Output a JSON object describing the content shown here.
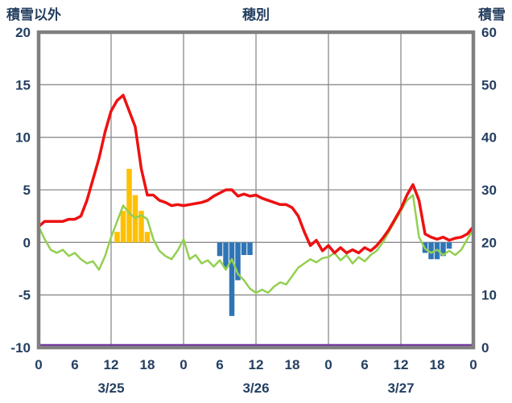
{
  "header": {
    "left_axis_title": "積雪以外",
    "chart_title": "穂別",
    "right_axis_title": "積雪"
  },
  "colors": {
    "red_line": "#ee1111",
    "green_line": "#92d050",
    "orange_bar": "#ffc000",
    "blue_bar": "#2e75b6",
    "purple_line": "#7030a0",
    "grid": "#8c8c8c",
    "border": "#7f7f7f",
    "text": "#243f60",
    "background": "#ffffff"
  },
  "chart_data": {
    "type": "line+bar",
    "title": "穂別",
    "x_unit": "hour",
    "x_range_hours": [
      0,
      72
    ],
    "left_axis": {
      "label": "積雪以外",
      "min": -10,
      "max": 20,
      "ticks": [
        20,
        15,
        10,
        5,
        0,
        -5,
        -10
      ]
    },
    "right_axis": {
      "label": "積雪",
      "min": 0,
      "max": 60,
      "ticks": [
        60,
        50,
        40,
        30,
        20,
        10,
        0
      ]
    },
    "x_ticks": [
      {
        "hour": 0,
        "label": "0"
      },
      {
        "hour": 6,
        "label": "6"
      },
      {
        "hour": 12,
        "label": "12"
      },
      {
        "hour": 18,
        "label": "18"
      },
      {
        "hour": 24,
        "label": "0"
      },
      {
        "hour": 30,
        "label": "6"
      },
      {
        "hour": 36,
        "label": "12"
      },
      {
        "hour": 42,
        "label": "18"
      },
      {
        "hour": 48,
        "label": "0"
      },
      {
        "hour": 54,
        "label": "6"
      },
      {
        "hour": 60,
        "label": "12"
      },
      {
        "hour": 66,
        "label": "18"
      },
      {
        "hour": 72,
        "label": "0"
      }
    ],
    "date_labels": [
      {
        "hour": 12,
        "label": "3/25"
      },
      {
        "hour": 36,
        "label": "3/26"
      },
      {
        "hour": 60,
        "label": "3/27"
      }
    ],
    "grid": {
      "vertical_every_hours": 12,
      "horizontal_every_units": 5
    },
    "series": [
      {
        "name": "red-temperature-line",
        "axis": "left",
        "color_key": "red_line",
        "width": 3.5,
        "hourly_values": [
          1.5,
          2,
          2,
          2,
          2,
          2.2,
          2.2,
          2.5,
          4,
          6,
          8,
          10.5,
          12.5,
          13.5,
          14,
          12.5,
          11,
          7,
          4.5,
          4.5,
          4,
          3.8,
          3.5,
          3.6,
          3.5,
          3.6,
          3.7,
          3.8,
          4,
          4.4,
          4.7,
          5,
          5,
          4.4,
          4.6,
          4.4,
          4.5,
          4.2,
          4,
          3.8,
          3.6,
          3.6,
          3.3,
          2.5,
          1,
          -0.3,
          0.2,
          -0.8,
          -0.3,
          -1,
          -0.5,
          -1,
          -0.7,
          -1,
          -0.5,
          -0.8,
          -0.3,
          0.4,
          1.2,
          2.2,
          3.2,
          4.5,
          5.5,
          4,
          0.8,
          0.5,
          0.3,
          0.5,
          0.2,
          0.4,
          0.5,
          0.8,
          1.5
        ]
      },
      {
        "name": "green-line",
        "axis": "left",
        "color_key": "green_line",
        "width": 2.5,
        "hourly_values": [
          1.5,
          0.3,
          -0.7,
          -1,
          -0.7,
          -1.3,
          -1,
          -1.6,
          -2,
          -1.8,
          -2.6,
          -1.3,
          0.5,
          2,
          3.5,
          2.8,
          2.3,
          2.6,
          2.2,
          0.3,
          -0.8,
          -1.3,
          -1.6,
          -0.8,
          0.3,
          -1.6,
          -1.2,
          -2,
          -1.7,
          -2.3,
          -1.7,
          -2.6,
          -1.6,
          -3,
          -3.6,
          -4.4,
          -4.8,
          -4.5,
          -4.8,
          -4.2,
          -3.8,
          -4,
          -3.2,
          -2.4,
          -2,
          -1.6,
          -1.9,
          -1.5,
          -1.4,
          -1,
          -1.7,
          -1.2,
          -2,
          -1.4,
          -1.8,
          -1.2,
          -0.8,
          0,
          1,
          2,
          3,
          4,
          4.5,
          0.5,
          -0.6,
          -1,
          -0.7,
          -1.2,
          -0.8,
          -1.2,
          -0.7,
          0.3,
          1.3
        ]
      },
      {
        "name": "purple-snow-depth-line",
        "axis": "right",
        "color_key": "purple_line",
        "width": 2.5,
        "constant_value": 0
      }
    ],
    "bars": [
      {
        "name": "orange-bars",
        "axis": "left",
        "color_key": "orange_bar",
        "points": [
          {
            "hour": 13,
            "value": 1
          },
          {
            "hour": 14,
            "value": 3
          },
          {
            "hour": 15,
            "value": 7
          },
          {
            "hour": 16,
            "value": 4.5
          },
          {
            "hour": 17,
            "value": 3
          },
          {
            "hour": 18,
            "value": 1
          }
        ]
      },
      {
        "name": "blue-bars",
        "axis": "left",
        "color_key": "blue_bar",
        "points": [
          {
            "hour": 30,
            "value": -1.3
          },
          {
            "hour": 31,
            "value": -2.4
          },
          {
            "hour": 32,
            "value": -7
          },
          {
            "hour": 33,
            "value": -3.6
          },
          {
            "hour": 34,
            "value": -1.2
          },
          {
            "hour": 35,
            "value": -1.2
          },
          {
            "hour": 64,
            "value": -1
          },
          {
            "hour": 65,
            "value": -1.6
          },
          {
            "hour": 66,
            "value": -1.6
          },
          {
            "hour": 67,
            "value": -1.3
          },
          {
            "hour": 68,
            "value": -0.6
          }
        ]
      }
    ]
  }
}
